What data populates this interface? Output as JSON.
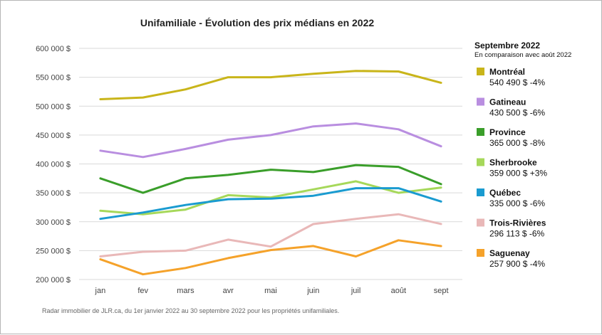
{
  "chart_data": {
    "type": "line",
    "title": "Unifamiliale - Évolution des prix médians en 2022",
    "categories": [
      "jan",
      "fev",
      "mars",
      "avr",
      "mai",
      "juin",
      "juil",
      "août",
      "sept"
    ],
    "ylim": [
      200000,
      600000
    ],
    "yticks": [
      "600 000 $",
      "550 000 $",
      "500 000 $",
      "450 000 $",
      "400 000 $",
      "350 000 $",
      "300 000 $",
      "250 000 $",
      "200 000 $"
    ],
    "ytick_values": [
      600000,
      550000,
      500000,
      450000,
      400000,
      350000,
      300000,
      250000,
      200000
    ],
    "grid": true,
    "legend_placement": "right",
    "series": [
      {
        "name": "Montréal",
        "color": "#c9b51a",
        "summary": "540 490 $ -4%",
        "values": [
          512000,
          515000,
          529000,
          550000,
          550000,
          556000,
          561000,
          560000,
          540490
        ]
      },
      {
        "name": "Gatineau",
        "color": "#b98ee0",
        "summary": "430 500 $ -6%",
        "values": [
          423000,
          412000,
          426000,
          442000,
          450000,
          465000,
          470000,
          460000,
          430500
        ]
      },
      {
        "name": "Province",
        "color": "#3a9e2a",
        "summary": "365 000 $ -8%",
        "values": [
          375000,
          350000,
          375000,
          381000,
          390000,
          386000,
          398000,
          395000,
          365000
        ]
      },
      {
        "name": "Sherbrooke",
        "color": "#a6d85a",
        "summary": "359 000 $ +3%",
        "values": [
          319000,
          313000,
          321000,
          346000,
          342000,
          356000,
          370000,
          350000,
          359000
        ]
      },
      {
        "name": "Québec",
        "color": "#1a9bd0",
        "summary": "335 000 $ -6%",
        "values": [
          305000,
          316000,
          329000,
          339000,
          340000,
          345000,
          358000,
          358000,
          335000
        ]
      },
      {
        "name": "Trois-Rivières",
        "color": "#e9b8b8",
        "summary": "296 113 $ -6%",
        "values": [
          240000,
          248000,
          250000,
          269000,
          257000,
          296000,
          305000,
          313000,
          296113
        ]
      },
      {
        "name": "Saguenay",
        "color": "#f5a22a",
        "summary": "257 900 $ -4%",
        "values": [
          235000,
          209000,
          220000,
          237000,
          251000,
          258000,
          240000,
          268000,
          257900
        ]
      }
    ]
  },
  "legend": {
    "title": "Septembre 2022",
    "subtitle": "En comparaison avec août 2022"
  },
  "footnote": "Radar immobilier de JLR.ca, du 1er janvier 2022 au 30 septembre 2022 pour les propriétés unifamiliales."
}
